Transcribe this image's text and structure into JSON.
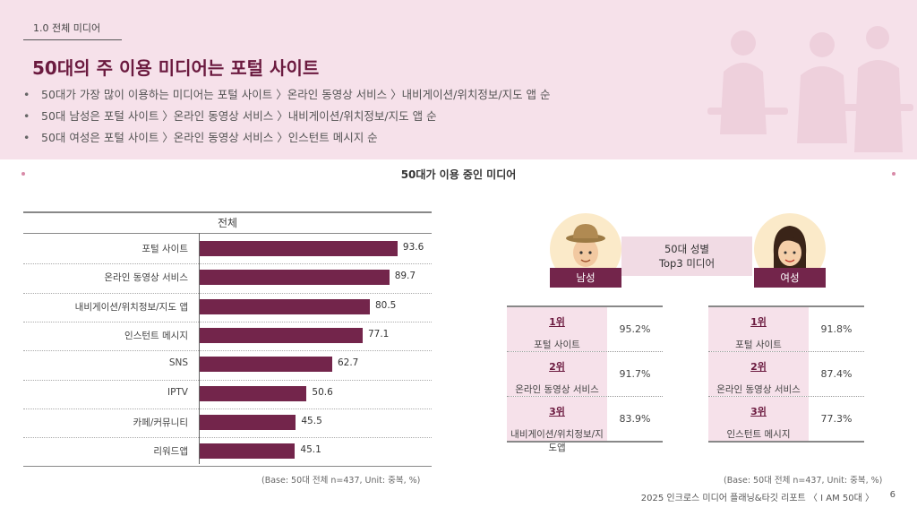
{
  "header": {
    "section_label": "1.0 전체 미디어",
    "title": "50대의 주 이용 미디어는 포털 사이트",
    "bullets": [
      "50대가 가장 많이 이용하는 미디어는 포털 사이트 〉온라인 동영상 서비스 〉내비게이션/위치정보/지도 앱 순",
      "50대 남성은 포털 사이트 〉온라인 동영상 서비스 〉내비게이션/위치정보/지도 앱 순",
      "50대 여성은 포털 사이트 〉온라인 동영상 서비스 〉인스턴트 메시지 순"
    ]
  },
  "chart_title": "50대가 이용 중인 미디어",
  "chart_data": [
    {
      "type": "bar",
      "orientation": "horizontal",
      "title": "전체",
      "categories": [
        "포털 사이트",
        "온라인 동영상 서비스",
        "내비게이션/위치정보/지도 앱",
        "인스턴트 메시지",
        "SNS",
        "IPTV",
        "카페/커뮤니티",
        "리워드앱"
      ],
      "values": [
        93.6,
        89.7,
        80.5,
        77.1,
        62.7,
        50.6,
        45.5,
        45.1
      ],
      "xlim": [
        0,
        100
      ],
      "bar_color": "#73254b"
    },
    {
      "type": "table",
      "title": "50대 성별 Top3 미디어",
      "groups": [
        {
          "name": "남성",
          "rows": [
            {
              "rank": "1위",
              "media": "포털 사이트",
              "value": "95.2%"
            },
            {
              "rank": "2위",
              "media": "온라인 동영상 서비스",
              "value": "91.7%"
            },
            {
              "rank": "3위",
              "media": "내비게이션/위치정보/지도앱",
              "value": "83.9%"
            }
          ]
        },
        {
          "name": "여성",
          "rows": [
            {
              "rank": "1위",
              "media": "포털 사이트",
              "value": "91.8%"
            },
            {
              "rank": "2위",
              "media": "온라인 동영상 서비스",
              "value": "87.4%"
            },
            {
              "rank": "3위",
              "media": "인스턴트 메시지",
              "value": "77.3%"
            }
          ]
        }
      ]
    }
  ],
  "center_box": {
    "line1": "50대 성별",
    "line2": "Top3 미디어"
  },
  "base_note": "(Base: 50대 전체 n=437, Unit: 중복, %)",
  "footer": {
    "text": "2025 인크로스 미디어 플래닝&타깃 리포트 〈 I AM 50대 〉",
    "page": "6"
  },
  "colors": {
    "accent": "#73254b",
    "header_bg": "#f6e1ea",
    "table_bg": "#f6e1ea"
  }
}
